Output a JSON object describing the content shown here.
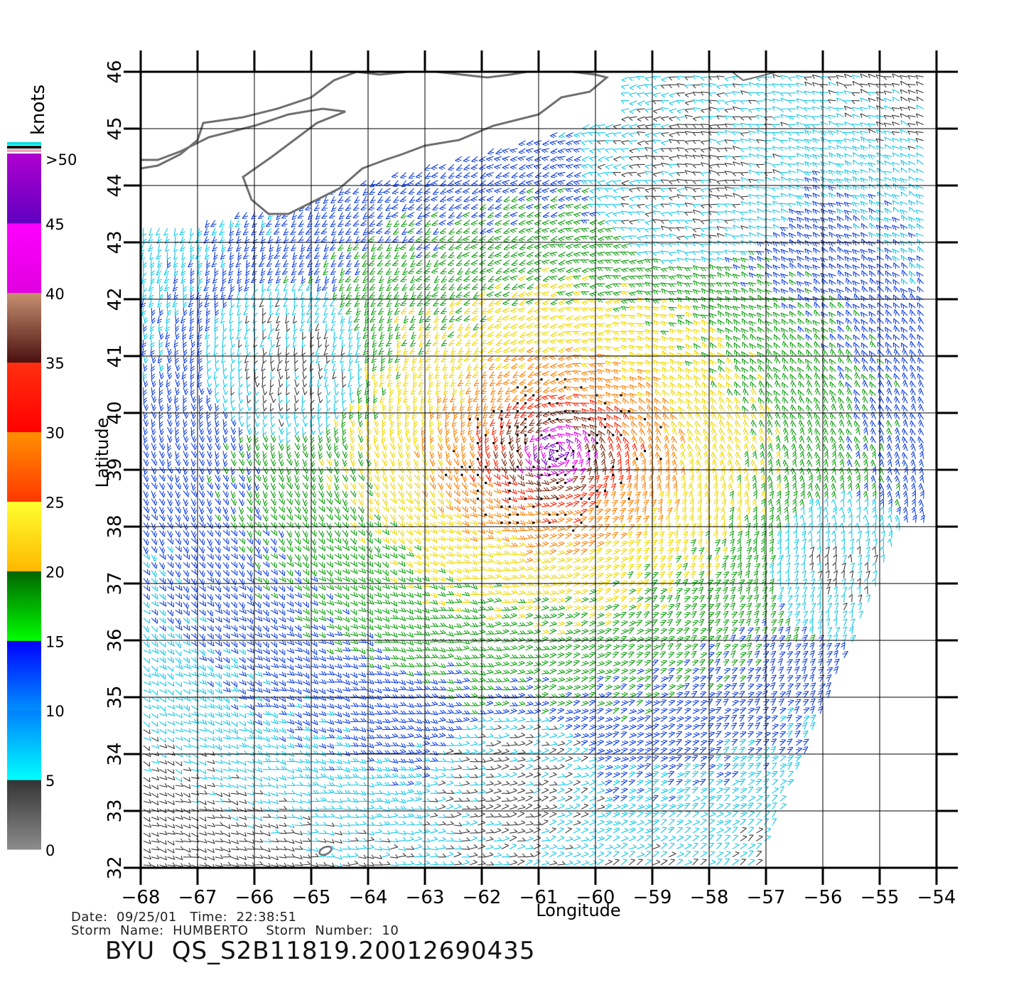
{
  "plot": {
    "xlabel": "Longitude",
    "ylabel": "Latitude",
    "lon_ticks": [
      -68,
      -67,
      -66,
      -65,
      -64,
      -63,
      -62,
      -61,
      -60,
      -59,
      -58,
      -57,
      -56,
      -55,
      -54
    ],
    "lat_ticks": [
      32,
      33,
      34,
      35,
      36,
      37,
      38,
      39,
      40,
      41,
      42,
      43,
      44,
      45,
      46
    ],
    "lon_range": [
      -68,
      -54
    ],
    "lat_range": [
      32,
      46
    ],
    "grid": true
  },
  "colorbar": {
    "unit_label": "knots",
    "segments": [
      {
        "from": 0,
        "to": 5,
        "top_color": "#333333",
        "bottom_color": "#8c8c8c"
      },
      {
        "from": 5,
        "to": 10,
        "top_color": "#0080ff",
        "bottom_color": "#00ffff"
      },
      {
        "from": 10,
        "to": 15,
        "top_color": "#0000ff",
        "bottom_color": "#0090ff"
      },
      {
        "from": 15,
        "to": 20,
        "top_color": "#006400",
        "bottom_color": "#00ff00"
      },
      {
        "from": 20,
        "to": 25,
        "top_color": "#ffff30",
        "bottom_color": "#ffb800"
      },
      {
        "from": 25,
        "to": 30,
        "top_color": "#ff9000",
        "bottom_color": "#ff3800"
      },
      {
        "from": 30,
        "to": 35,
        "top_color": "#ff3010",
        "bottom_color": "#ff0000"
      },
      {
        "from": 35,
        "to": 40,
        "top_color": "#c89070",
        "bottom_color": "#4a1010"
      },
      {
        "from": 40,
        "to": 45,
        "top_color": "#ff00ff",
        "bottom_color": "#e000e0"
      },
      {
        "from": 45,
        "to": 50,
        "top_color": "#b000d0",
        "bottom_color": "#6000c0"
      }
    ],
    "labels": [
      "0",
      "5",
      "10",
      "15",
      "20",
      "25",
      "30",
      "35",
      "40",
      "45",
      ">50"
    ],
    "cap_colors": [
      "#00e0e0",
      "#000000",
      "#f0a0c0"
    ]
  },
  "speed_scale": [
    {
      "max": 5,
      "color": "#3a3a3a"
    },
    {
      "max": 10,
      "color": "#10c8e8"
    },
    {
      "max": 15,
      "color": "#1040e0"
    },
    {
      "max": 20,
      "color": "#10a010"
    },
    {
      "max": 25,
      "color": "#f0d800"
    },
    {
      "max": 30,
      "color": "#ff8000"
    },
    {
      "max": 35,
      "color": "#ff2000"
    },
    {
      "max": 40,
      "color": "#7a2a10"
    },
    {
      "max": 45,
      "color": "#e000e0"
    },
    {
      "max": 999,
      "color": "#7000c0"
    }
  ],
  "storm": {
    "center_lon": -60.7,
    "center_lat": 39.3
  },
  "coast_color": "#707070",
  "caption": {
    "line1": "Date:  09/25/01   Time:  22:38:51",
    "line2": "Storm  Name:  HUMBERTO    Storm  Number:  10",
    "product": "BYU  QS_S2B11819.20012690435"
  }
}
